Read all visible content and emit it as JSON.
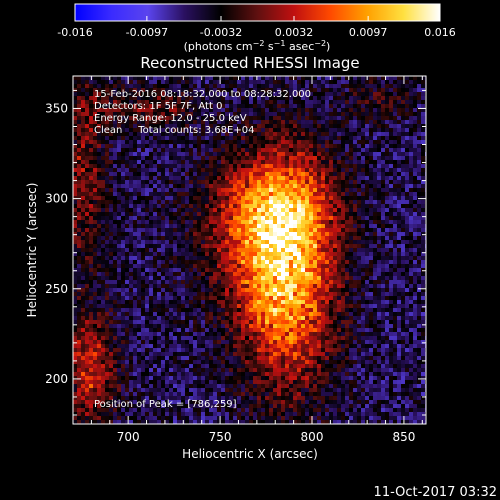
{
  "chart_data": {
    "type": "heatmap",
    "title": "Reconstructed RHESSI Image",
    "xlabel": "Heliocentric X (arcsec)",
    "ylabel": "Heliocentric Y (arcsec)",
    "xlim": [
      670,
      862
    ],
    "ylim": [
      175,
      368
    ],
    "x_ticks": [
      700,
      750,
      800,
      850
    ],
    "y_ticks": [
      200,
      250,
      300,
      350
    ],
    "colorbar": {
      "range": [
        -0.016,
        0.016
      ],
      "ticks": [
        "-0.016",
        "-0.0097",
        "-0.0032",
        "0.0032",
        "0.0097",
        "0.016"
      ],
      "label_parts": [
        "(photons cm",
        "−2",
        " s",
        "−1",
        " asec",
        "−2",
        ")"
      ],
      "colormap": [
        "#0000ff",
        "#3a2bff",
        "#5a44ee",
        "#2a1060",
        "#000000",
        "#601010",
        "#c01010",
        "#ff4a00",
        "#ffa000",
        "#ffe040",
        "#ffffff"
      ]
    },
    "annotations": [
      "15-Feb-2016 08:18:32.000 to 08:28:32.000",
      "Detectors: 1F 5F 7F, Att 0",
      "Energy Range: 12.0 - 25.0 keV",
      "Clean     Total counts: 3.68E+04"
    ],
    "peak_label": "Position of Peak = [786,259]",
    "sources": [
      {
        "x": 786,
        "y": 259,
        "sx": 18,
        "sy": 42,
        "amp": 0.016
      },
      {
        "x": 782,
        "y": 296,
        "sx": 22,
        "sy": 18,
        "amp": 0.006
      },
      {
        "x": 768,
        "y": 280,
        "sx": 24,
        "sy": 28,
        "amp": 0.005
      },
      {
        "x": 680,
        "y": 205,
        "sx": 10,
        "sy": 22,
        "amp": 0.009
      },
      {
        "x": 676,
        "y": 315,
        "sx": 9,
        "sy": 38,
        "amp": 0.006
      },
      {
        "x": 710,
        "y": 350,
        "sx": 22,
        "sy": 8,
        "amp": 0.005
      },
      {
        "x": 836,
        "y": 355,
        "sx": 14,
        "sy": 8,
        "amp": 0.003
      }
    ],
    "background": {
      "level": -0.0055,
      "noise": 0.002
    }
  },
  "footer": {
    "date": "11-Oct-2017 03:32"
  }
}
